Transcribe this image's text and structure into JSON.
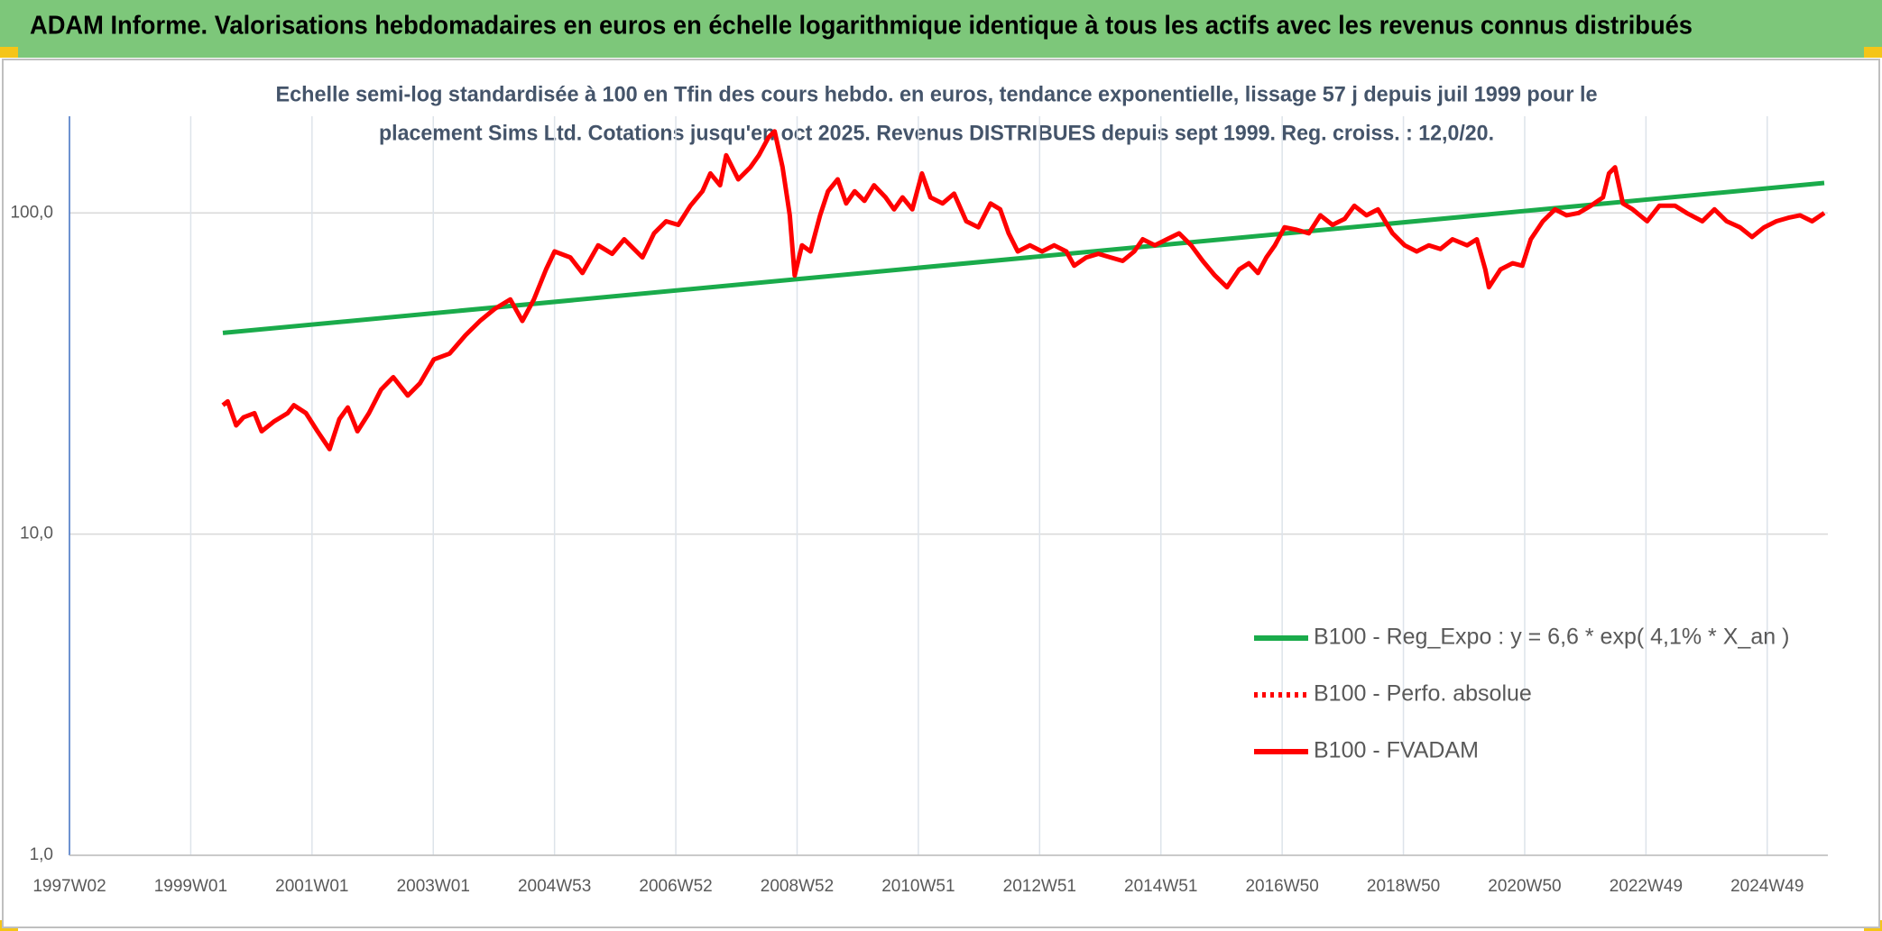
{
  "chart_data": {
    "type": "line",
    "title": "ADAM Informe. Valorisations hebdomadaires en euros en échelle logarithmique identique à tous les actifs avec les revenus connus distribués",
    "subtitle": [
      "Echelle semi-log standardisée à 100 en Tfin des cours hebdo. en euros, tendance exponentielle, lissage 57 j depuis juil 1999 pour le",
      "placement Sims Ltd. Cotations jusqu'en oct 2025. Revenus DISTRIBUES depuis sept 1999. Reg. croiss. : 12,0/20."
    ],
    "log_y": true,
    "grid": true,
    "legend": "lower right",
    "xlim": [
      1997,
      2026
    ],
    "xticks": [
      {
        "value": 1997,
        "label": "1997W02"
      },
      {
        "value": 1999,
        "label": "1999W01"
      },
      {
        "value": 2001,
        "label": "2001W01"
      },
      {
        "value": 2003,
        "label": "2003W01"
      },
      {
        "value": 2005,
        "label": "2004W53"
      },
      {
        "value": 2007,
        "label": "2006W52"
      },
      {
        "value": 2009,
        "label": "2008W52"
      },
      {
        "value": 2011,
        "label": "2010W51"
      },
      {
        "value": 2013,
        "label": "2012W51"
      },
      {
        "value": 2015,
        "label": "2014W51"
      },
      {
        "value": 2017,
        "label": "2016W50"
      },
      {
        "value": 2019,
        "label": "2018W50"
      },
      {
        "value": 2021,
        "label": "2020W50"
      },
      {
        "value": 2023,
        "label": "2022W49"
      },
      {
        "value": 2025,
        "label": "2024W49"
      }
    ],
    "ylim": [
      1,
      200
    ],
    "yticks": [
      {
        "value": 1,
        "label": "1,0"
      },
      {
        "value": 10,
        "label": "10,0"
      },
      {
        "value": 100,
        "label": "100,0"
      }
    ],
    "series": [
      {
        "name": "B100 - Reg_Expo : y = 6,6 * exp( 4,1% *  X_an )",
        "color": "#1aab4b",
        "style": "solid",
        "x": [
          1999.53,
          2025.94
        ],
        "values": [
          42.3,
          124
        ]
      },
      {
        "name": "B100 - Perfo. absolue",
        "color": "#ff0000",
        "style": "dotted"
      },
      {
        "name": "B100 - FVADAM",
        "color": "#ff0000",
        "style": "solid",
        "x": [
          1999.53,
          1999.61,
          1999.75,
          1999.87,
          2000.05,
          2000.17,
          2000.37,
          2000.6,
          2000.7,
          2000.9,
          2001.09,
          2001.29,
          2001.45,
          2001.59,
          2001.75,
          2001.94,
          2002.14,
          2002.34,
          2002.58,
          2002.78,
          2003.01,
          2003.27,
          2003.53,
          2003.77,
          2004.01,
          2004.27,
          2004.47,
          2004.66,
          2004.86,
          2005.0,
          2005.26,
          2005.46,
          2005.72,
          2005.95,
          2006.15,
          2006.45,
          2006.64,
          2006.84,
          2007.04,
          2007.24,
          2007.44,
          2007.57,
          2007.73,
          2007.83,
          2008.03,
          2008.23,
          2008.37,
          2008.53,
          2008.63,
          2008.76,
          2008.88,
          2008.96,
          2009.08,
          2009.22,
          2009.38,
          2009.51,
          2009.67,
          2009.81,
          2009.95,
          2010.11,
          2010.27,
          2010.46,
          2010.6,
          2010.74,
          2010.9,
          2011.06,
          2011.2,
          2011.4,
          2011.59,
          2011.79,
          2011.99,
          2012.19,
          2012.35,
          2012.49,
          2012.64,
          2012.84,
          2013.04,
          2013.24,
          2013.44,
          2013.57,
          2013.77,
          2013.97,
          2014.17,
          2014.37,
          2014.56,
          2014.7,
          2014.9,
          2015.1,
          2015.3,
          2015.5,
          2015.69,
          2015.89,
          2016.09,
          2016.29,
          2016.45,
          2016.6,
          2016.74,
          2016.88,
          2017.04,
          2017.24,
          2017.44,
          2017.63,
          2017.83,
          2018.03,
          2018.19,
          2018.39,
          2018.58,
          2018.82,
          2019.02,
          2019.22,
          2019.42,
          2019.61,
          2019.81,
          2020.05,
          2020.21,
          2020.35,
          2020.41,
          2020.6,
          2020.8,
          2020.96,
          2021.1,
          2021.3,
          2021.5,
          2021.69,
          2021.89,
          2022.09,
          2022.29,
          2022.39,
          2022.49,
          2022.62,
          2022.78,
          2023.02,
          2023.22,
          2023.48,
          2023.67,
          2023.93,
          2024.13,
          2024.33,
          2024.55,
          2024.75,
          2024.95,
          2025.15,
          2025.35,
          2025.54,
          2025.74,
          2025.94
        ],
        "values": [
          25.2,
          25.9,
          21.8,
          23.1,
          23.8,
          20.9,
          22.4,
          23.8,
          25.2,
          23.8,
          20.9,
          18.4,
          22.8,
          24.8,
          20.9,
          23.8,
          28.2,
          30.8,
          27.0,
          29.5,
          35.0,
          36.5,
          41.6,
          46.1,
          50.2,
          53.8,
          46.1,
          53.8,
          66.7,
          75.9,
          72.7,
          65.0,
          79.3,
          74.6,
          82.8,
          72.7,
          86.4,
          94.2,
          91.8,
          105.3,
          116.8,
          132.8,
          121.9,
          151.2,
          127.2,
          138.7,
          151.2,
          172.0,
          179.6,
          138.7,
          98.3,
          63.9,
          79.3,
          75.9,
          98.3,
          116.8,
          127.2,
          107.1,
          116.8,
          109.0,
          121.9,
          111.8,
          102.6,
          111.8,
          102.6,
          132.8,
          111.8,
          107.1,
          114.8,
          94.2,
          90.2,
          107.1,
          102.6,
          86.4,
          75.9,
          79.3,
          75.9,
          79.3,
          75.9,
          68.5,
          72.7,
          74.6,
          72.7,
          70.9,
          75.9,
          82.8,
          79.3,
          82.8,
          86.4,
          79.3,
          70.9,
          63.9,
          58.7,
          66.7,
          69.7,
          65.0,
          72.7,
          79.3,
          90.2,
          88.6,
          86.4,
          98.3,
          91.8,
          95.8,
          105.3,
          98.3,
          102.6,
          86.4,
          79.3,
          75.9,
          79.3,
          77.2,
          82.8,
          79.3,
          82.8,
          66.7,
          58.7,
          66.7,
          69.7,
          68.5,
          82.8,
          94.2,
          102.6,
          98.3,
          100,
          105.3,
          111.8,
          132.8,
          138.7,
          107.1,
          102.6,
          94.2,
          105.3,
          105.3,
          100,
          94.2,
          102.6,
          94.2,
          90.2,
          84.2,
          90.2,
          94.2,
          96.6,
          98.3,
          94.2,
          100
        ]
      }
    ]
  }
}
